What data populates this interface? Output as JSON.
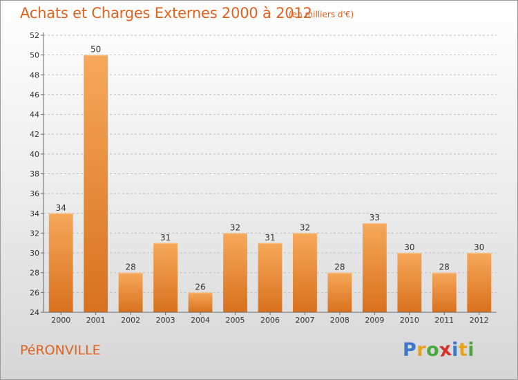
{
  "title": "Achats et Charges Externes 2000 à 2012",
  "subtitle": "(en milliers d'€)",
  "commune": "PéRONVILLE",
  "logo": {
    "letters": [
      {
        "ch": "P",
        "color": "#3a78c9"
      },
      {
        "ch": "r",
        "color": "#e8a21a"
      },
      {
        "ch": "o",
        "color": "#4aa83c"
      },
      {
        "ch": "x",
        "color": "#d9302a"
      },
      {
        "ch": "i",
        "color": "#3a78c9"
      },
      {
        "ch": "t",
        "color": "#e8a21a"
      },
      {
        "ch": "i",
        "color": "#4aa83c"
      }
    ]
  },
  "colors": {
    "accent": "#e0621e",
    "bar_light": "#f6a85a",
    "bar_dark": "#d8711e",
    "grid": "#bdbdbd"
  },
  "chart_data": {
    "type": "bar",
    "categories": [
      "2000",
      "2001",
      "2002",
      "2003",
      "2004",
      "2005",
      "2006",
      "2007",
      "2008",
      "2009",
      "2010",
      "2011",
      "2012"
    ],
    "values": [
      34,
      50,
      28,
      31,
      26,
      32,
      31,
      32,
      28,
      33,
      30,
      28,
      30
    ],
    "data_labels": [
      "34",
      "50",
      "28",
      "31",
      "26",
      "32",
      "31",
      "32",
      "28",
      "33",
      "30",
      "28",
      "30"
    ],
    "yticks": [
      "24",
      "26",
      "28",
      "30",
      "32",
      "34",
      "36",
      "38",
      "40",
      "42",
      "44",
      "46",
      "48",
      "50",
      "52"
    ],
    "ylim": [
      24,
      52
    ],
    "grid": "horizontal dashed",
    "title": "Achats et Charges Externes 2000 à 2012",
    "xlabel": "",
    "ylabel": ""
  }
}
